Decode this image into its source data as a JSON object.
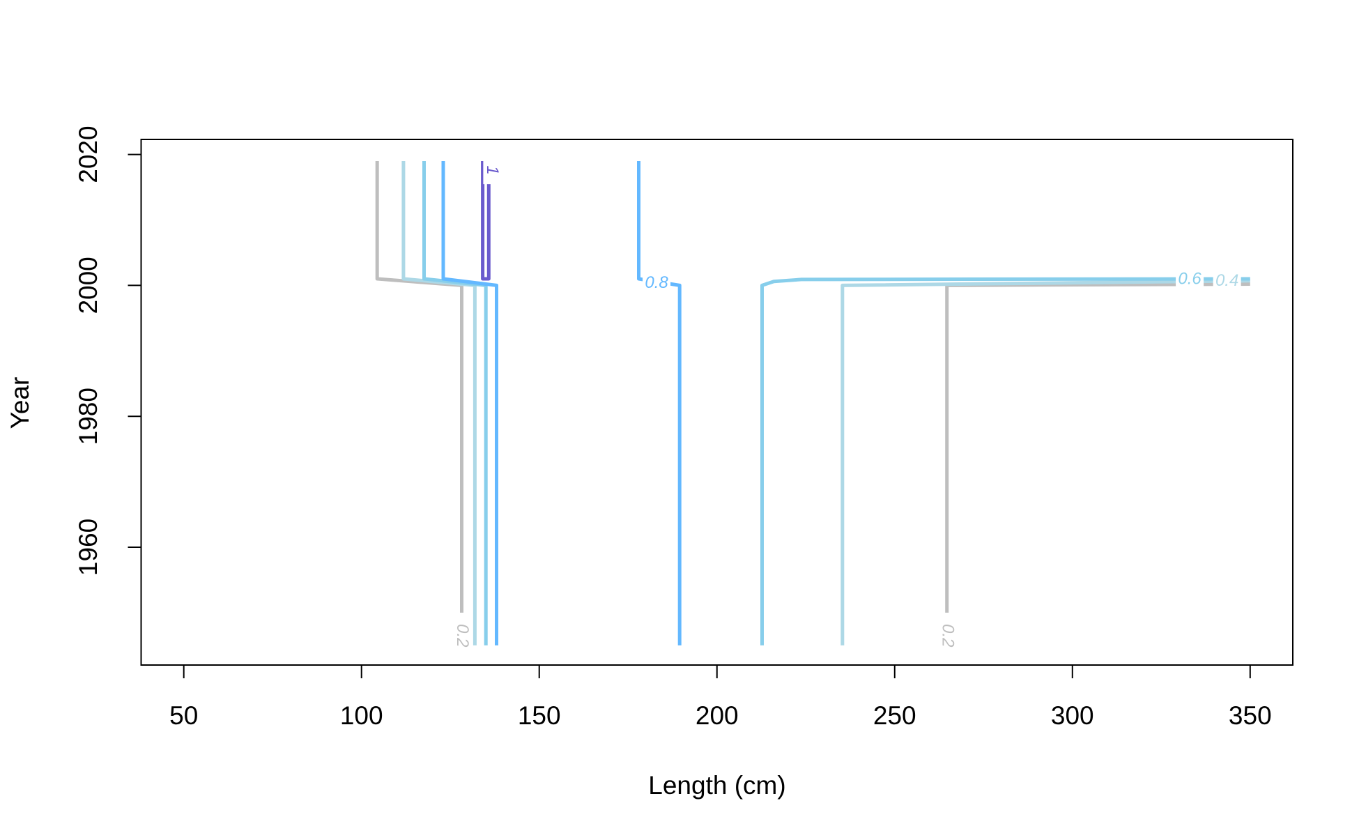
{
  "chart_data": {
    "type": "contour",
    "x_label": "Length (cm)",
    "y_label": "Year",
    "xlim": [
      38,
      362
    ],
    "ylim": [
      1942,
      2022.3
    ],
    "xticks": [
      50,
      100,
      150,
      200,
      250,
      300,
      350
    ],
    "yticks": [
      1960,
      1980,
      2000,
      2020
    ],
    "contours": [
      {
        "level": 0.2,
        "color": "#bebebe",
        "x": [
          104.4,
          104.4,
          128.2,
          128.2,
          null,
          350,
          264.7,
          264.7
        ],
        "y": [
          2019,
          2001,
          2000,
          1950,
          null,
          2000.2,
          2000,
          1950
        ],
        "label_at": [
          [
            128.2,
            1946.5
          ],
          [
            264.7,
            1946.5
          ]
        ]
      },
      {
        "level": 0.4,
        "color": "#add8e6",
        "x": [
          111.8,
          111.8,
          131.9,
          131.9,
          null,
          235.3,
          235.3,
          350
        ],
        "y": [
          2019,
          2001,
          2000,
          1945,
          null,
          1945,
          2000,
          2000.7
        ],
        "label_at": [
          [
            343.5,
            2000.6
          ]
        ]
      },
      {
        "level": 0.6,
        "color": "#87ceeb",
        "x": [
          117.6,
          117.6,
          135,
          135,
          null,
          212.7,
          212.7,
          216,
          223.8,
          350
        ],
        "y": [
          2019,
          2001,
          2000,
          1945,
          null,
          1945,
          2000,
          2000.6,
          2000.9,
          2001
        ],
        "label_at": [
          [
            333,
            2000.9
          ]
        ]
      },
      {
        "level": 0.8,
        "color": "#63b8ff",
        "x": [
          123,
          123,
          138,
          138,
          null,
          178,
          178,
          189.5,
          189.5
        ],
        "y": [
          2019,
          2001,
          2000,
          1945,
          null,
          2019,
          2001,
          2000,
          1945
        ],
        "label_at": [
          [
            183,
            2000.3
          ]
        ]
      },
      {
        "level": 1,
        "color": "#6a5acd",
        "x": [
          134.1,
          134.1,
          135.8,
          135.8
        ],
        "y": [
          2019,
          2001,
          2001,
          2016
        ],
        "label_at": [
          [
            136.6,
            2017.6
          ]
        ]
      }
    ]
  }
}
